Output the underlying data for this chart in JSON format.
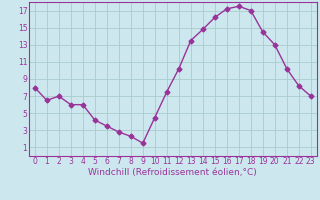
{
  "x": [
    0,
    1,
    2,
    3,
    4,
    5,
    6,
    7,
    8,
    9,
    10,
    11,
    12,
    13,
    14,
    15,
    16,
    17,
    18,
    19,
    20,
    21,
    22,
    23
  ],
  "y": [
    8.0,
    6.5,
    7.0,
    6.0,
    6.0,
    4.2,
    3.5,
    2.8,
    2.3,
    1.5,
    4.5,
    7.5,
    10.2,
    13.5,
    14.8,
    16.2,
    17.2,
    17.5,
    17.0,
    14.5,
    13.0,
    10.2,
    8.2,
    7.0
  ],
  "line_color": "#993399",
  "marker": "D",
  "markersize": 2.5,
  "linewidth": 1.0,
  "xlabel": "Windchill (Refroidissement éolien,°C)",
  "xlabel_fontsize": 6.5,
  "bg_color": "#cce8ee",
  "grid_color": "#aacccc",
  "tick_color": "#993399",
  "label_color": "#993399",
  "xlim": [
    -0.5,
    23.5
  ],
  "ylim": [
    0,
    18
  ],
  "yticks": [
    1,
    3,
    5,
    7,
    9,
    11,
    13,
    15,
    17
  ],
  "xticks": [
    0,
    1,
    2,
    3,
    4,
    5,
    6,
    7,
    8,
    9,
    10,
    11,
    12,
    13,
    14,
    15,
    16,
    17,
    18,
    19,
    20,
    21,
    22,
    23
  ],
  "tick_fontsize": 5.5,
  "spine_color": "#993399"
}
